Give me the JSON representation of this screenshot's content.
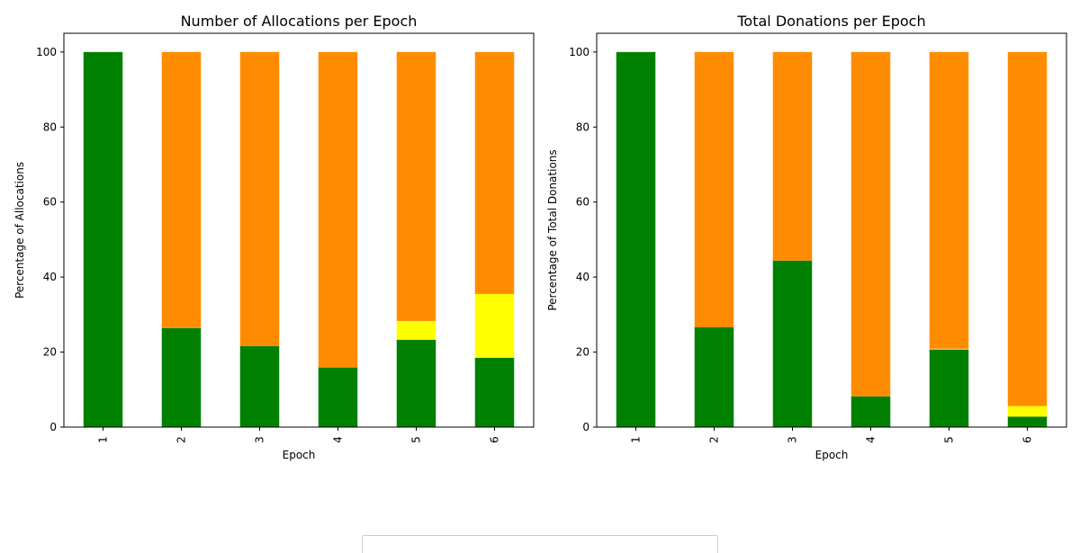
{
  "colors": {
    "green": "#008000",
    "yellow": "#ffff00",
    "orange": "#ff8c00"
  },
  "chart_data": [
    {
      "type": "bar",
      "stacked": true,
      "title": "Number of Allocations per Epoch",
      "xlabel": "Epoch",
      "ylabel": "Percentage of Allocations",
      "categories": [
        "1",
        "2",
        "3",
        "4",
        "5",
        "6"
      ],
      "ylim": [
        0,
        105
      ],
      "yticks": [
        0,
        20,
        40,
        60,
        80,
        100
      ],
      "series": [
        {
          "color": "green",
          "values": [
            100,
            26.4,
            21.6,
            15.9,
            23.3,
            18.5
          ]
        },
        {
          "color": "yellow",
          "values": [
            0,
            0,
            0,
            0,
            5.0,
            17.0
          ]
        },
        {
          "color": "orange",
          "values": [
            0,
            73.6,
            78.4,
            84.1,
            71.7,
            64.5
          ]
        }
      ]
    },
    {
      "type": "bar",
      "stacked": true,
      "title": "Total Donations per Epoch",
      "xlabel": "Epoch",
      "ylabel": "Percentage of Total Donations",
      "categories": [
        "1",
        "2",
        "3",
        "4",
        "5",
        "6"
      ],
      "ylim": [
        0,
        105
      ],
      "yticks": [
        0,
        20,
        40,
        60,
        80,
        100
      ],
      "series": [
        {
          "color": "green",
          "values": [
            100,
            26.6,
            44.4,
            8.2,
            20.7,
            2.8
          ]
        },
        {
          "color": "yellow",
          "values": [
            0,
            0,
            0,
            0,
            0.2,
            2.8
          ]
        },
        {
          "color": "orange",
          "values": [
            0,
            73.4,
            55.6,
            91.8,
            79.1,
            94.4
          ]
        }
      ]
    }
  ]
}
